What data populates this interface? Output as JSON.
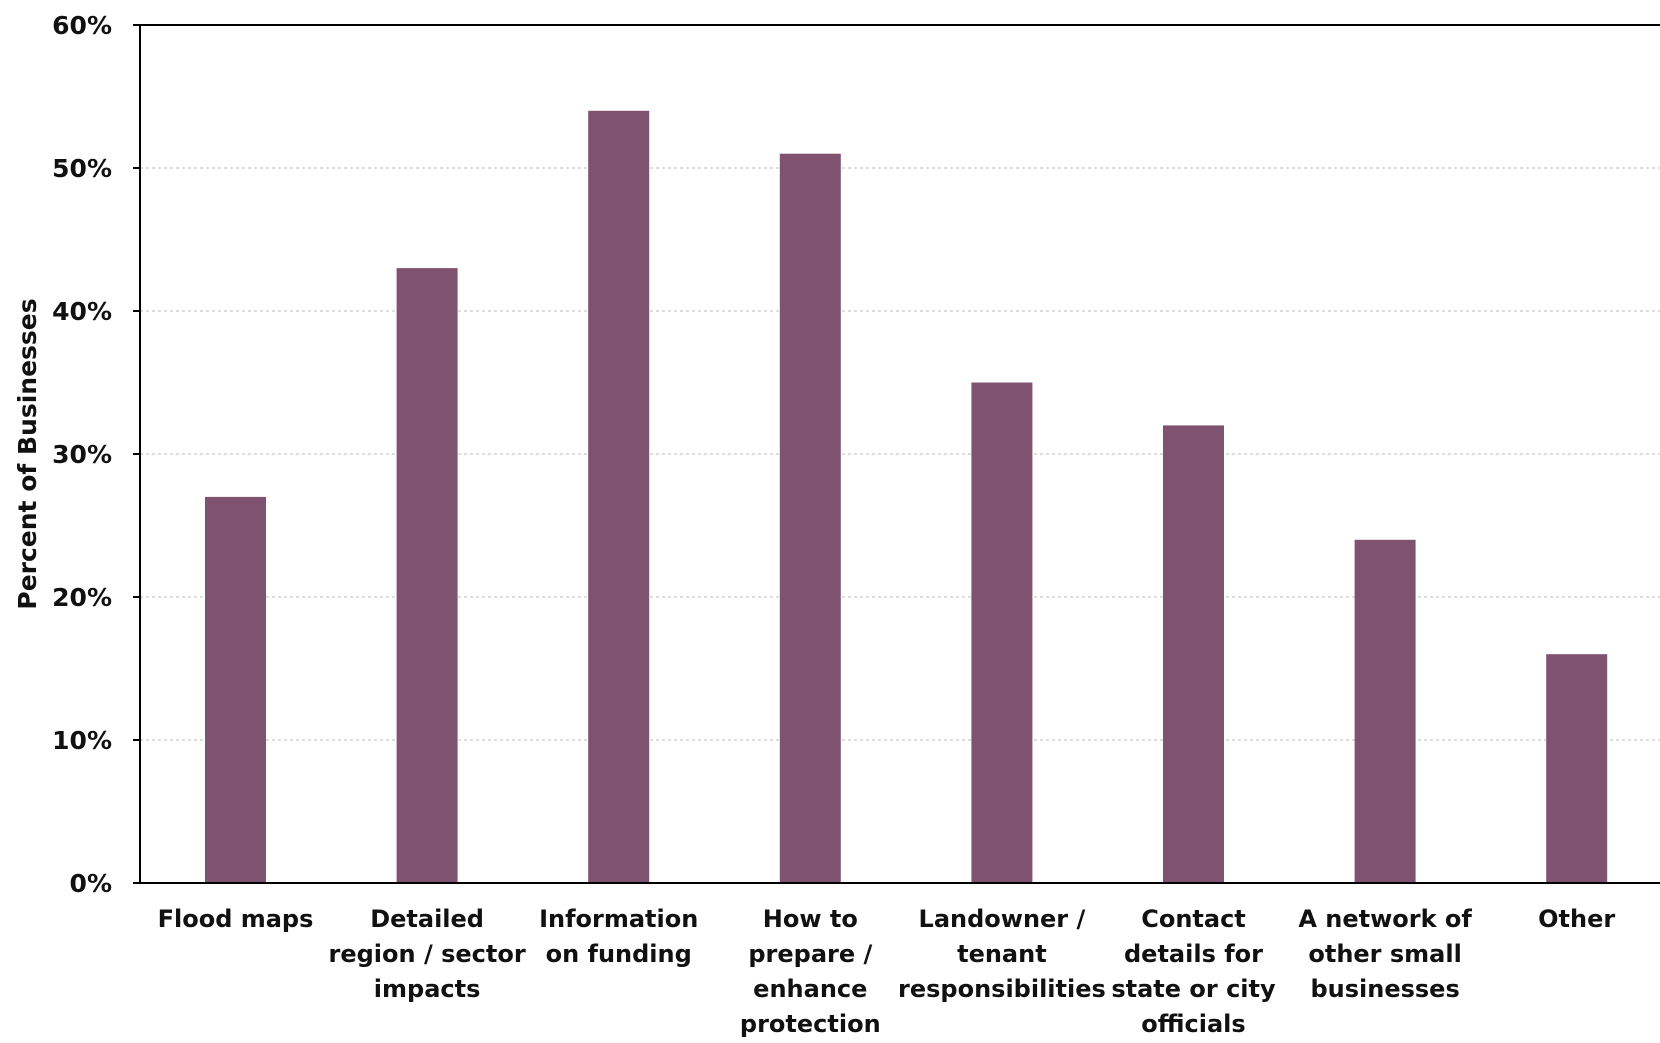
{
  "chart_data": {
    "type": "bar",
    "title": "",
    "xlabel": "",
    "ylabel": "Percent of Businesses",
    "ylim": [
      0,
      60
    ],
    "yticks": [
      0,
      10,
      20,
      30,
      40,
      50,
      60
    ],
    "ytick_format": "percent",
    "grid": "horizontal dotted",
    "legend": "none",
    "bar_color": "#7f5370",
    "categories": [
      [
        "Flood maps"
      ],
      [
        "Detailed",
        "region / sector",
        "impacts"
      ],
      [
        "Information",
        "on funding"
      ],
      [
        "How to",
        "prepare /",
        "enhance",
        "protection"
      ],
      [
        "Landowner /",
        "tenant",
        "responsibilities"
      ],
      [
        "Contact",
        "details for",
        "state or city",
        "officials"
      ],
      [
        "A network of",
        "other small",
        "businesses"
      ],
      [
        "Other"
      ]
    ],
    "values": [
      27,
      43,
      54,
      51,
      35,
      32,
      24,
      16
    ]
  }
}
